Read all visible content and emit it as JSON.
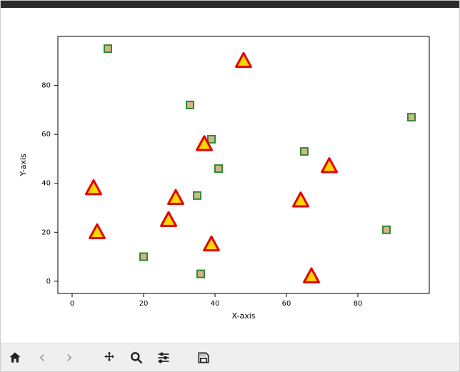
{
  "chart": {
    "type": "scatter",
    "xlabel": "X-axis",
    "ylabel": "Y-axis",
    "label_fontsize": 11,
    "tick_fontsize": 10,
    "background_color": "#ffffff",
    "plot_border_color": "#000000",
    "xlim": [
      -4,
      100
    ],
    "ylim": [
      -5,
      100
    ],
    "xticks": [
      0,
      20,
      40,
      60,
      80
    ],
    "yticks": [
      0,
      20,
      40,
      60,
      80
    ],
    "series": [
      {
        "name": "squares",
        "marker": "square",
        "marker_size": 10,
        "fill_color": "#d2b48c",
        "edge_color": "#2e8b2e",
        "edge_width": 2,
        "points": [
          {
            "x": 10,
            "y": 95
          },
          {
            "x": 33,
            "y": 72
          },
          {
            "x": 95,
            "y": 67
          },
          {
            "x": 39,
            "y": 58
          },
          {
            "x": 65,
            "y": 53
          },
          {
            "x": 41,
            "y": 46
          },
          {
            "x": 35,
            "y": 35
          },
          {
            "x": 88,
            "y": 21
          },
          {
            "x": 20,
            "y": 10
          },
          {
            "x": 36,
            "y": 3
          }
        ]
      },
      {
        "name": "triangles",
        "marker": "triangle",
        "marker_size": 22,
        "fill_color": "#ffd700",
        "edge_color": "#e60000",
        "edge_width": 3,
        "points": [
          {
            "x": 48,
            "y": 90
          },
          {
            "x": 37,
            "y": 56
          },
          {
            "x": 72,
            "y": 47
          },
          {
            "x": 6,
            "y": 38
          },
          {
            "x": 29,
            "y": 34
          },
          {
            "x": 64,
            "y": 33
          },
          {
            "x": 27,
            "y": 25
          },
          {
            "x": 7,
            "y": 20
          },
          {
            "x": 39,
            "y": 15
          },
          {
            "x": 67,
            "y": 2
          }
        ]
      }
    ]
  },
  "toolbar": {
    "home": "Home",
    "back": "Back",
    "forward": "Forward",
    "pan": "Pan",
    "zoom": "Zoom",
    "configure": "Configure subplots",
    "save": "Save figure"
  }
}
